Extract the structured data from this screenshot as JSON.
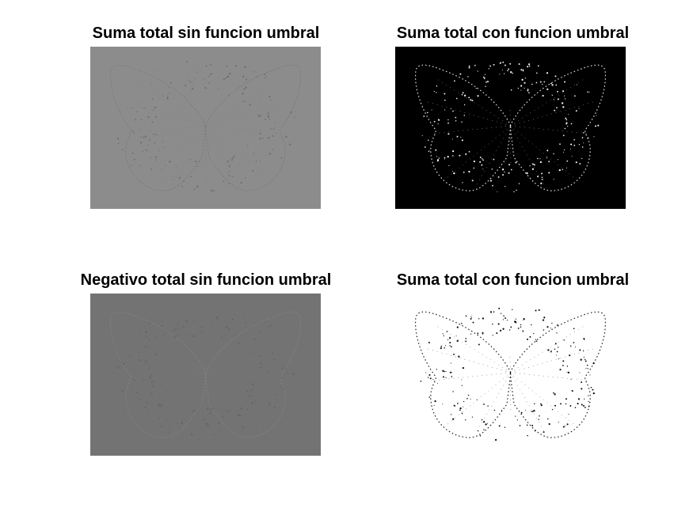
{
  "figure": {
    "panels": [
      {
        "title": "Suma total sin funcion umbral",
        "image": {
          "background": "#8c8c8c",
          "stroke": "#6e6e6e",
          "dots": "#5a5a5a"
        }
      },
      {
        "title": "Suma total con funcion umbral",
        "image": {
          "background": "#000000",
          "stroke": "#ffffff",
          "dots": "#ffffff"
        }
      },
      {
        "title": "Negativo total sin funcion umbral",
        "image": {
          "background": "#737373",
          "stroke": "#8f8f8f",
          "dots": "#5a5a5a"
        }
      },
      {
        "title": "Suma total con funcion umbral",
        "image": {
          "background": "#ffffff",
          "stroke": "#000000",
          "dots": "#000000"
        }
      }
    ]
  }
}
